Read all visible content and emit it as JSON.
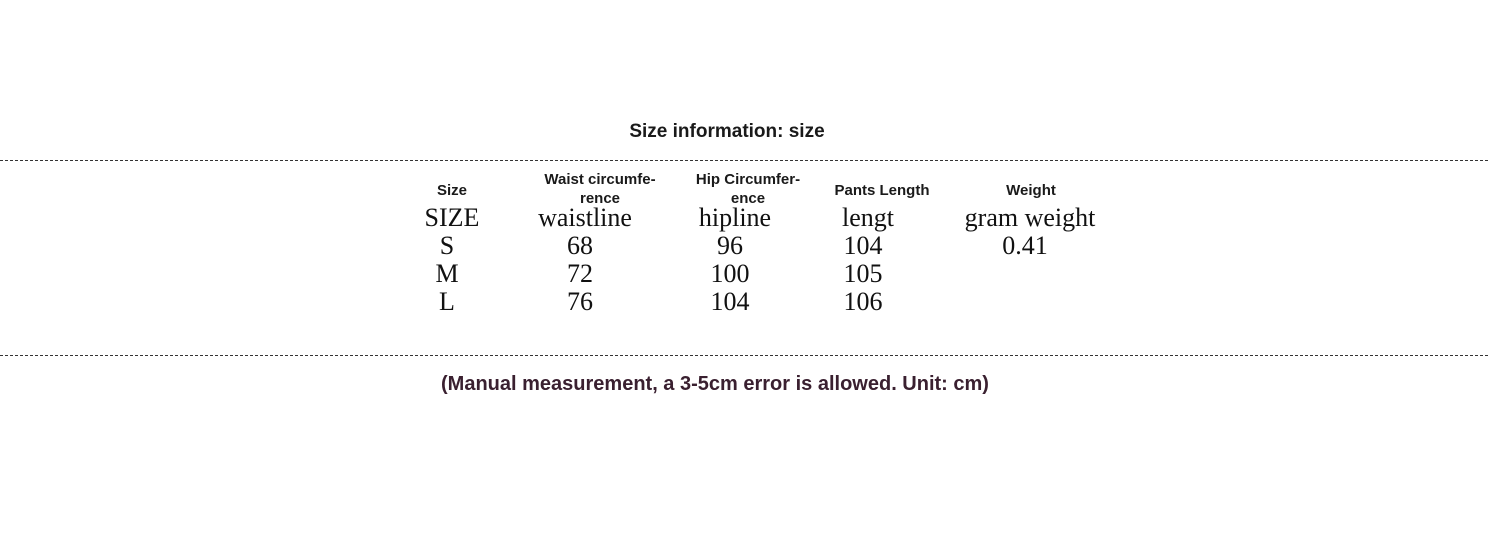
{
  "title": "Size information: size",
  "table": {
    "header": [
      [
        "Size"
      ],
      [
        "Waist circumfe-",
        "rence"
      ],
      [
        "Hip Circumfer-",
        "ence"
      ],
      [
        "Pants Length"
      ],
      [
        "Weight"
      ]
    ],
    "subheader": [
      "SIZE",
      "waistline",
      "hipline",
      "lengt",
      "gram weight"
    ],
    "rows": [
      [
        "S",
        68,
        96,
        104,
        0.41
      ],
      [
        "M",
        72,
        100,
        105
      ],
      [
        "L",
        76,
        104,
        106
      ]
    ]
  },
  "footer": "(Manual measurement, a 3-5cm error is allowed. Unit: cm)"
}
